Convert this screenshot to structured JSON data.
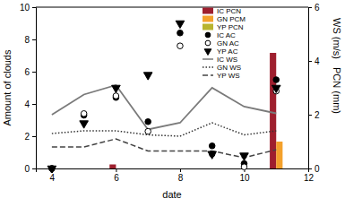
{
  "chart_data": {
    "type": "combo",
    "x_label": "date",
    "y_label": "Amount of clouds",
    "y2_label": [
      "WS (m/s)",
      "PCN (mm)"
    ],
    "xlim": [
      3.5,
      12
    ],
    "xticks": [
      4,
      6,
      8,
      10,
      12
    ],
    "ylim": [
      0,
      10
    ],
    "yticks": [
      0,
      2,
      4,
      6,
      8,
      10
    ],
    "y2lim": [
      0,
      6
    ],
    "y2ticks": [
      0,
      2,
      4,
      6
    ],
    "legend": "upper right",
    "series": [
      {
        "name": "IC PCN",
        "type": "bar",
        "color": "#9e1f2e",
        "axis": "y2",
        "x": [
          6,
          11
        ],
        "values": [
          0.15,
          4.3
        ]
      },
      {
        "name": "GN PCM",
        "type": "bar",
        "color": "#f4a12c",
        "axis": "y2",
        "x": [
          6,
          11
        ],
        "values": [
          0,
          1.0
        ]
      },
      {
        "name": "YP PCN",
        "type": "bar",
        "color": "#b8b42e",
        "axis": "y2",
        "x": [
          6,
          11
        ],
        "values": [
          0,
          0
        ]
      },
      {
        "name": "IC AC",
        "type": "scatter",
        "color": "#000000",
        "marker": "circle",
        "x": [
          4,
          5,
          6,
          7,
          8,
          9,
          10,
          11
        ],
        "values": [
          0,
          3.3,
          4.4,
          2.9,
          8.4,
          1.4,
          0.3,
          5.5
        ]
      },
      {
        "name": "GN AC",
        "type": "scatter",
        "color": "#000000",
        "marker": "open_circle",
        "x": [
          4,
          5,
          6,
          7,
          8,
          9,
          10,
          11
        ],
        "values": [
          0,
          3.4,
          4.5,
          2.3,
          7.6,
          0.9,
          0.1,
          4.8
        ]
      },
      {
        "name": "YP AC",
        "type": "scatter",
        "color": "#000000",
        "marker": "triangle_down",
        "x": [
          4,
          5,
          6,
          7,
          8,
          9,
          10,
          11
        ],
        "values": [
          0,
          2.8,
          5.0,
          5.8,
          9.0,
          0.9,
          0.8,
          5.0
        ]
      },
      {
        "name": "IC WS",
        "type": "line",
        "color": "#7a7a7a",
        "line_style": "solid",
        "axis": "y2",
        "x": [
          4,
          5,
          6,
          7,
          8,
          9,
          10,
          11
        ],
        "values": [
          2.0,
          2.75,
          3.1,
          1.45,
          1.7,
          3.0,
          2.3,
          2.05
        ]
      },
      {
        "name": "GN WS",
        "type": "line",
        "color": "#333333",
        "line_style": "dotted",
        "axis": "y2",
        "x": [
          4,
          5,
          6,
          7,
          8,
          9,
          10,
          11
        ],
        "values": [
          1.3,
          1.4,
          1.4,
          1.25,
          1.2,
          1.7,
          1.25,
          1.4
        ]
      },
      {
        "name": "YP WS",
        "type": "line",
        "color": "#444444",
        "line_style": "dashed",
        "axis": "y2",
        "x": [
          4,
          5,
          6,
          7,
          8,
          9,
          10,
          11
        ],
        "values": [
          0.8,
          0.8,
          1.1,
          0.65,
          0.65,
          0.65,
          0.4,
          0.7
        ]
      }
    ]
  }
}
